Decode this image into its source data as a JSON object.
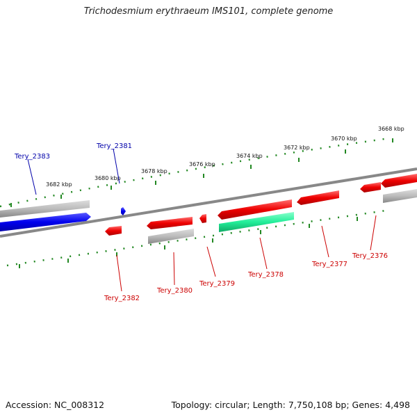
{
  "title": "Trichodesmium erythraeum IMS101, complete genome",
  "footer": {
    "accession": "Accession: NC_008312",
    "topology": "Topology: circular; Length: 7,750,108 bp; Genes: 4,498"
  },
  "ticks": [
    "3682 kbp",
    "3680 kbp",
    "3678 kbp",
    "3676 kbp",
    "3674 kbp",
    "3672 kbp",
    "3670 kbp",
    "3668 kbp"
  ],
  "genes_forward": [
    {
      "label": "Tery_2383",
      "color": "#0000ee"
    },
    {
      "label": "Tery_2381",
      "color": "#0000ee"
    }
  ],
  "genes_reverse": [
    {
      "label": "Tery_2382",
      "color": "#ee0000"
    },
    {
      "label": "Tery_2380",
      "color": "#ee0000"
    },
    {
      "label": "Tery_2379",
      "color": "#ee0000"
    },
    {
      "label": "Tery_2378",
      "color": "#ee0000"
    },
    {
      "label": "Tery_2377",
      "color": "#ee0000"
    },
    {
      "label": "Tery_2376",
      "color": "#ee0000"
    }
  ],
  "colors": {
    "forward_cds": "#0000ee",
    "reverse_cds": "#ee0000",
    "rna": "#22ee99",
    "other": "#bbbbbb",
    "backbone": "#888888",
    "tick": "#228822"
  }
}
